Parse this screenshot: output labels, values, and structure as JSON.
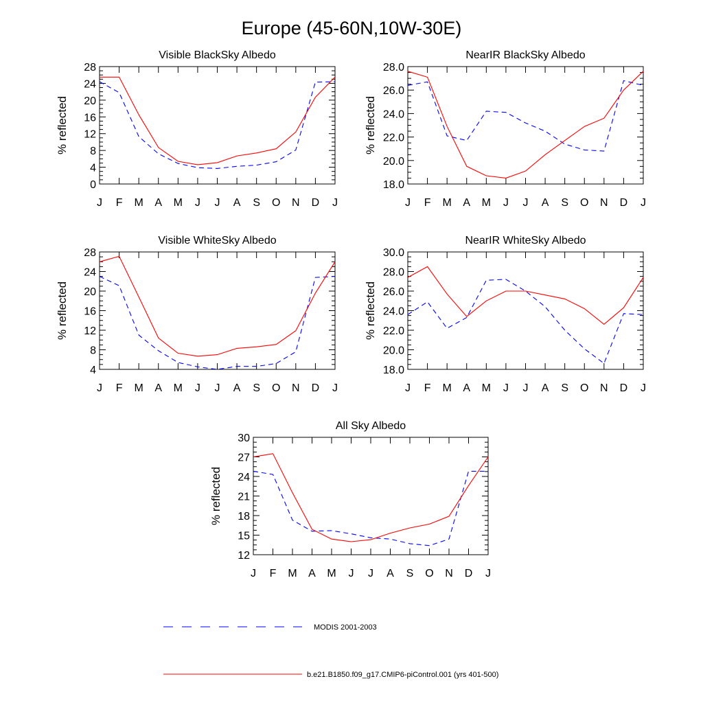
{
  "title": "Europe (45-60N,10W-30E)",
  "colors": {
    "modis": "#0000ff",
    "model": "#ff0000"
  },
  "legend": {
    "modis_label": "MODIS 2001-2003",
    "model_label": "b.e21.B1850.f09_g17.CMIP6-piControl.001 (yrs 401-500)"
  },
  "chart_data": [
    {
      "type": "line",
      "title": "Visible BlackSky Albedo",
      "ylabel": "% reflected",
      "xlabel": "",
      "categories": [
        "J",
        "F",
        "M",
        "A",
        "M",
        "J",
        "J",
        "A",
        "S",
        "O",
        "N",
        "D",
        "J"
      ],
      "ylim": [
        0,
        28
      ],
      "yticks": [
        "0",
        "4",
        "8",
        "12",
        "16",
        "20",
        "24",
        "28"
      ],
      "series": [
        {
          "name": "MODIS 2001-2003",
          "style": "dashed",
          "values": [
            24.4,
            21.8,
            11.3,
            7.2,
            4.9,
            3.9,
            3.7,
            4.2,
            4.5,
            5.3,
            8.1,
            24.3,
            24.4
          ]
        },
        {
          "name": "b.e21.B1850.f09_g17.CMIP6-piControl.001 (yrs 401-500)",
          "style": "solid",
          "values": [
            25.5,
            25.5,
            16.5,
            8.7,
            5.4,
            4.6,
            5.1,
            6.7,
            7.4,
            8.4,
            12.4,
            20.7,
            25.5
          ]
        }
      ]
    },
    {
      "type": "line",
      "title": "NearIR BlackSky Albedo",
      "ylabel": "% reflected",
      "xlabel": "",
      "categories": [
        "J",
        "F",
        "M",
        "A",
        "M",
        "J",
        "J",
        "A",
        "S",
        "O",
        "N",
        "D",
        "J"
      ],
      "ylim": [
        18,
        28
      ],
      "yticks": [
        "18.0",
        "20.0",
        "22.0",
        "24.0",
        "26.0",
        "28.0"
      ],
      "series": [
        {
          "name": "MODIS 2001-2003",
          "style": "dashed",
          "values": [
            26.4,
            26.7,
            22.1,
            21.7,
            24.2,
            24.1,
            23.2,
            22.5,
            21.4,
            20.9,
            20.8,
            26.8,
            26.4
          ]
        },
        {
          "name": "b.e21.B1850.f09_g17.CMIP6-piControl.001 (yrs 401-500)",
          "style": "solid",
          "values": [
            27.6,
            27.1,
            22.9,
            19.5,
            18.7,
            18.5,
            19.1,
            20.5,
            21.7,
            22.9,
            23.6,
            26.0,
            27.6
          ]
        }
      ]
    },
    {
      "type": "line",
      "title": "Visible WhiteSky Albedo",
      "ylabel": "% reflected",
      "xlabel": "",
      "categories": [
        "J",
        "F",
        "M",
        "A",
        "M",
        "J",
        "J",
        "A",
        "S",
        "O",
        "N",
        "D",
        "J"
      ],
      "ylim": [
        4,
        28
      ],
      "yticks": [
        "4",
        "8",
        "12",
        "16",
        "20",
        "24",
        "28"
      ],
      "series": [
        {
          "name": "MODIS 2001-2003",
          "style": "dashed",
          "values": [
            23.0,
            21.1,
            11.0,
            7.8,
            5.4,
            4.5,
            4.0,
            4.6,
            4.6,
            5.2,
            7.6,
            22.8,
            23.0
          ]
        },
        {
          "name": "b.e21.B1850.f09_g17.CMIP6-piControl.001 (yrs 401-500)",
          "style": "solid",
          "values": [
            26.0,
            27.1,
            18.8,
            10.4,
            7.3,
            6.7,
            7.0,
            8.3,
            8.6,
            9.1,
            11.9,
            19.6,
            26.0
          ]
        }
      ]
    },
    {
      "type": "line",
      "title": "NearIR WhiteSky Albedo",
      "ylabel": "% reflected",
      "xlabel": "",
      "categories": [
        "J",
        "F",
        "M",
        "A",
        "M",
        "J",
        "J",
        "A",
        "S",
        "O",
        "N",
        "D",
        "J"
      ],
      "ylim": [
        18,
        30
      ],
      "yticks": [
        "18.0",
        "20.0",
        "22.0",
        "24.0",
        "26.0",
        "28.0",
        "30.0"
      ],
      "series": [
        {
          "name": "MODIS 2001-2003",
          "style": "dashed",
          "values": [
            23.6,
            24.9,
            22.2,
            23.3,
            27.1,
            27.2,
            26.0,
            24.4,
            22.0,
            20.1,
            18.6,
            23.7,
            23.6
          ]
        },
        {
          "name": "b.e21.B1850.f09_g17.CMIP6-piControl.001 (yrs 401-500)",
          "style": "solid",
          "values": [
            27.4,
            28.5,
            25.7,
            23.4,
            25.0,
            26.0,
            26.0,
            25.6,
            25.2,
            24.2,
            22.6,
            24.3,
            27.4
          ]
        }
      ]
    },
    {
      "type": "line",
      "title": "All Sky Albedo",
      "ylabel": "% reflected",
      "xlabel": "",
      "categories": [
        "J",
        "F",
        "M",
        "A",
        "M",
        "J",
        "J",
        "A",
        "S",
        "O",
        "N",
        "D",
        "J"
      ],
      "ylim": [
        12,
        30
      ],
      "yticks": [
        "12",
        "15",
        "18",
        "21",
        "24",
        "27",
        "30"
      ],
      "series": [
        {
          "name": "MODIS 2001-2003",
          "style": "dashed",
          "values": [
            24.8,
            24.3,
            17.3,
            15.6,
            15.7,
            15.2,
            14.6,
            14.4,
            13.7,
            13.4,
            14.4,
            24.8,
            24.8
          ]
        },
        {
          "name": "b.e21.B1850.f09_g17.CMIP6-piControl.001 (yrs 401-500)",
          "style": "solid",
          "values": [
            27.0,
            27.5,
            21.5,
            15.9,
            14.4,
            14.0,
            14.3,
            15.3,
            16.1,
            16.7,
            17.9,
            22.6,
            27.0
          ]
        }
      ]
    }
  ]
}
